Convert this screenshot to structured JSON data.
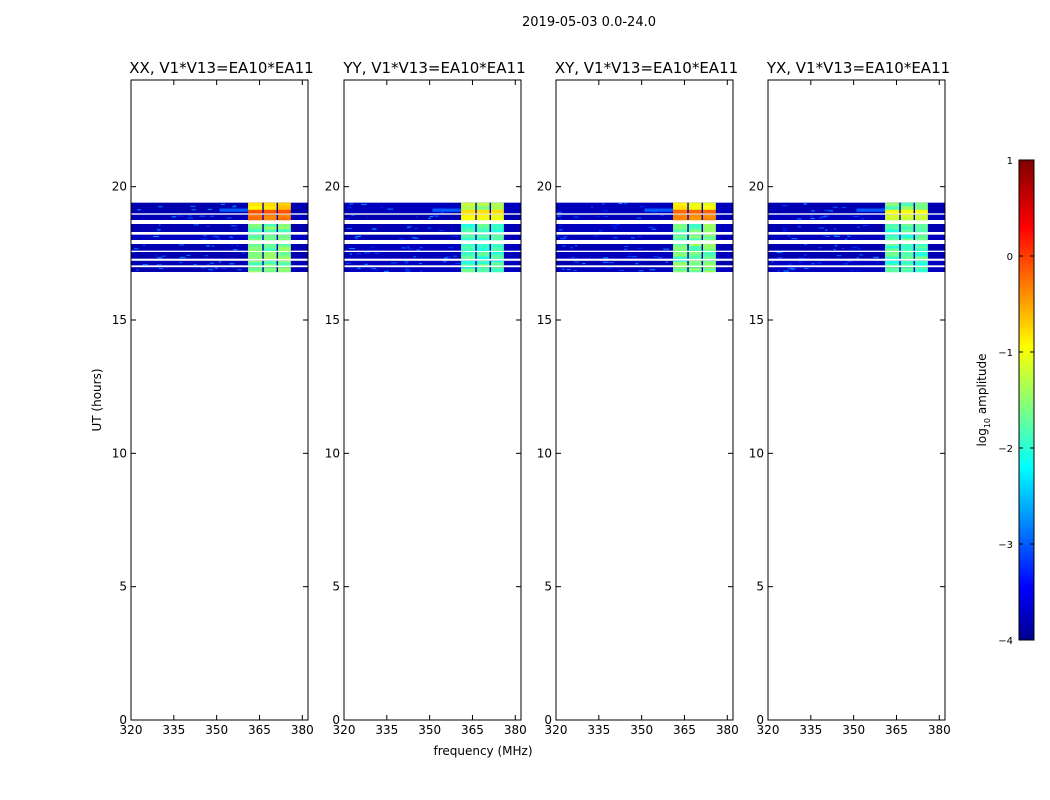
{
  "chart_data": {
    "type": "heatmap",
    "suptitle": "2019-05-03 0.0-24.0",
    "xlabel": "frequency (MHz)",
    "ylabel": "UT (hours)",
    "xlim": [
      320,
      382
    ],
    "ylim": [
      0,
      24
    ],
    "xticks": [
      "320",
      "335",
      "350",
      "365",
      "380"
    ],
    "yticks": [
      "0",
      "5",
      "10",
      "15",
      "20"
    ],
    "panels": [
      {
        "title": "XX, V1*V13=EA10*EA11",
        "peak_level": -0.1
      },
      {
        "title": "YY, V1*V13=EA10*EA11",
        "peak_level": -0.8
      },
      {
        "title": "XY, V1*V13=EA10*EA11",
        "peak_level": -0.2
      },
      {
        "title": "YX, V1*V13=EA10*EA11",
        "peak_level": -1.0
      }
    ],
    "data_time_range_hours": [
      16.8,
      19.4
    ],
    "strong_band_mhz": [
      361,
      376
    ],
    "colorbar": {
      "label": "log",
      "label_sub": "10",
      "label_rest": " amplitude",
      "range": [
        -4,
        1
      ],
      "ticks": [
        "1",
        "0",
        "−1",
        "−2",
        "−3",
        "−4"
      ]
    }
  }
}
